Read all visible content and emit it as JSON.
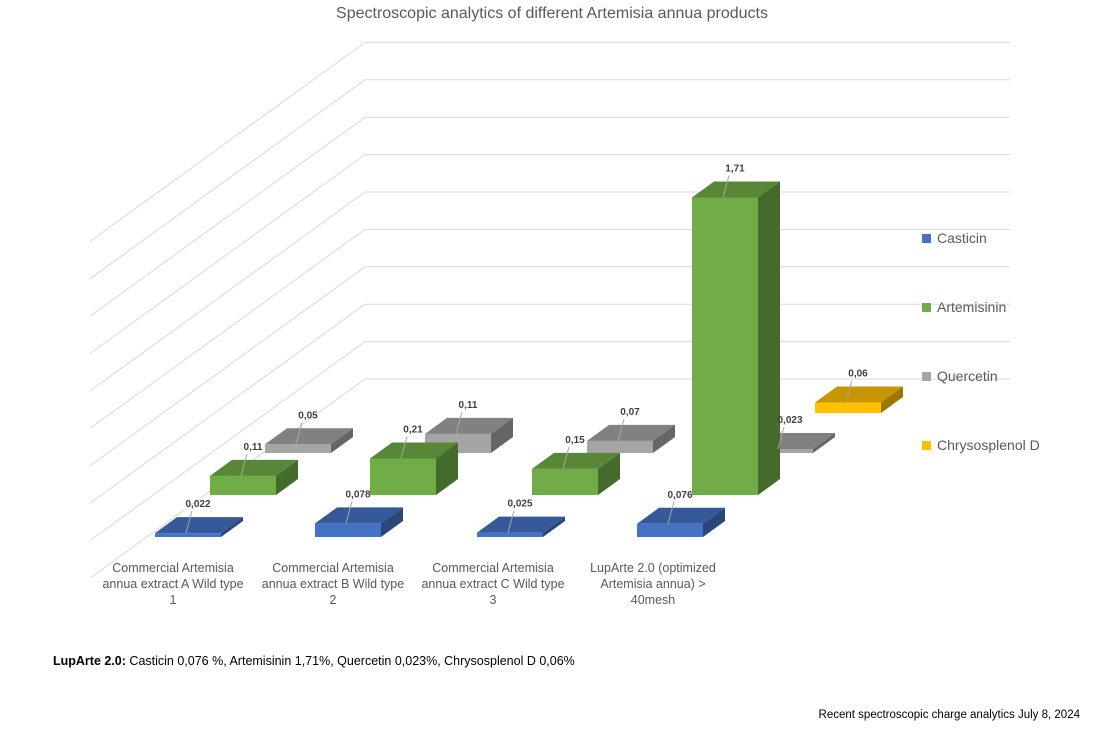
{
  "chart_data": {
    "type": "bar",
    "subtype": "3d-column",
    "title": "Spectroscopic analytics of different Artemisia annua products",
    "xlabel": "",
    "ylabel": "",
    "ylim": [
      0,
      1.8
    ],
    "grid": true,
    "legend_position": "right",
    "categories": [
      "Commercial Artemisia annua extract A Wild type 1",
      "Commercial Artemisia annua extract B Wild type 2",
      "Commercial Artemisia annua extract C Wild type 3",
      "LupArte 2.0 (optimized Artemisia annua) > 40mesh"
    ],
    "category_lines": [
      [
        "Commercial Artemisia",
        "annua extract A Wild type",
        "1"
      ],
      [
        "Commercial Artemisia",
        "annua extract B Wild type",
        "2"
      ],
      [
        "Commercial Artemisia",
        "annua extract C Wild type",
        "3"
      ],
      [
        "LupArte 2.0 (optimized",
        "Artemisia annua) >",
        "40mesh"
      ]
    ],
    "series": [
      {
        "name": "Casticin",
        "color": "#4472C4",
        "values": [
          0.022,
          0.078,
          0.025,
          0.076
        ],
        "labels": [
          "0,022",
          "0,078",
          "0,025",
          "0,076"
        ]
      },
      {
        "name": "Artemisinin",
        "color": "#70AD47",
        "values": [
          0.11,
          0.21,
          0.15,
          1.71
        ],
        "labels": [
          "0,11",
          "0,21",
          "0,15",
          "1,71"
        ]
      },
      {
        "name": "Quercetin",
        "color": "#A5A5A5",
        "values": [
          0.05,
          0.11,
          0.07,
          0.023
        ],
        "labels": [
          "0,05",
          "0,11",
          "0,07",
          "0,023"
        ]
      },
      {
        "name": "Chrysosplenol D",
        "color": "#FFC000",
        "values": [
          null,
          null,
          null,
          0.06
        ],
        "labels": [
          null,
          null,
          null,
          "0,06"
        ]
      }
    ]
  },
  "footnote": {
    "bold": "LupArte 2.0:",
    "text": " Casticin 0,076 %, Artemisinin 1,71%, Quercetin 0,023%, Chrysosplenol D 0,06%"
  },
  "source_note": "Recent spectroscopic charge analytics July 8, 2024"
}
